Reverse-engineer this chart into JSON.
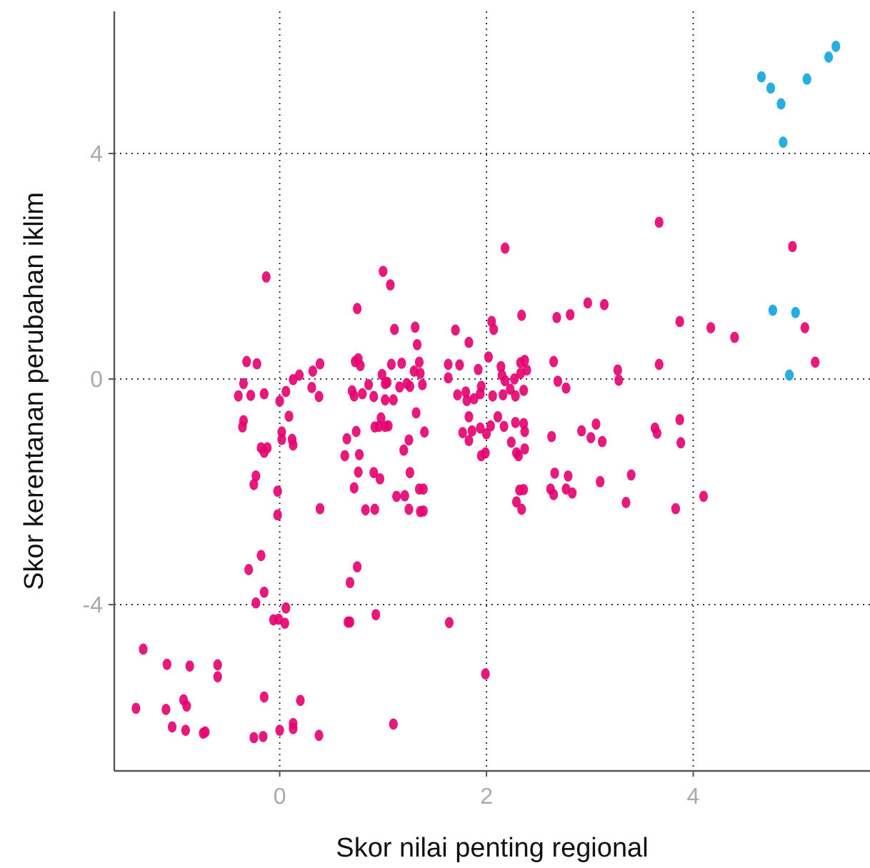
{
  "chart_data": {
    "type": "scatter",
    "xlabel": "Skor nilai penting regional",
    "ylabel": "Skor kerentanan perubahan iklim",
    "xlim": [
      -1.6,
      5.71
    ],
    "ylim": [
      -6.95,
      6.52
    ],
    "xticks": [
      0,
      2,
      4
    ],
    "yticks": [
      -4,
      0,
      4
    ],
    "grid": true,
    "marker": "circle",
    "series": [
      {
        "color": "#e5006f",
        "x": [
          3.67,
          4.96,
          3.87,
          4.17,
          4.4,
          5.08,
          5.18,
          3.67,
          3.87,
          3.88,
          3.63,
          3.65,
          4.1,
          3.83,
          3.4,
          3.35,
          3.1,
          3.27,
          3.28,
          2.98,
          3.14,
          2.81,
          2.68,
          2.65,
          2.69,
          2.77,
          2.92,
          3.01,
          3.06,
          3.12,
          2.63,
          2.66,
          2.79,
          2.62,
          2.65,
          2.77,
          2.83,
          2.18,
          2.05,
          2.07,
          2.34,
          1.7,
          1.83,
          2.02,
          1.74,
          1.63,
          1.63,
          1.92,
          2.14,
          2.15,
          2.18,
          2.33,
          2.37,
          2.39,
          2.33,
          2.27,
          2.23,
          2.36,
          2.28,
          2.16,
          2.06,
          1.95,
          1.94,
          1.88,
          1.8,
          1.72,
          1.81,
          2.11,
          2.04,
          1.94,
          1.86,
          1.77,
          1.83,
          1.83,
          2.0,
          1.95,
          1.99,
          2.17,
          2.28,
          2.36,
          2.37,
          2.24,
          2.37,
          2.29,
          2.31,
          2.32,
          2.36,
          2.29,
          2.34,
          1.64,
          1.99,
          1.0,
          1.07,
          0.75,
          1.11,
          1.31,
          1.33,
          0.76,
          0.78,
          0.73,
          1.18,
          1.08,
          1.35,
          1.3,
          1.36,
          0.99,
          1.02,
          1.04,
          1.23,
          1.26,
          1.38,
          1.16,
          0.86,
          0.7,
          0.72,
          0.8,
          0.91,
          1.02,
          1.1,
          1.32,
          1.4,
          0.98,
          0.92,
          0.96,
          1.02,
          1.05,
          0.74,
          0.65,
          1.25,
          1.2,
          0.77,
          0.63,
          0.76,
          0.91,
          0.97,
          1.26,
          0.72,
          1.13,
          1.21,
          1.35,
          1.39,
          0.83,
          0.92,
          1.25,
          1.36,
          1.39,
          0.75,
          0.68,
          0.66,
          0.68,
          0.93,
          1.1,
          -0.13,
          -0.32,
          -0.22,
          -0.35,
          -0.4,
          -0.28,
          -0.15,
          0.0,
          0.06,
          0.13,
          0.19,
          0.32,
          0.39,
          0.31,
          0.38,
          0.09,
          -0.35,
          -0.36,
          0.02,
          0.02,
          0.12,
          0.13,
          -0.18,
          -0.12,
          -0.15,
          -0.23,
          -0.25,
          -0.02,
          -0.02,
          0.39,
          -0.18,
          -0.3,
          -0.15,
          -0.23,
          -0.06,
          -0.01,
          0.06,
          0.05,
          -0.15,
          0.2,
          0.0,
          0.13,
          0.13,
          0.38,
          -0.16,
          -0.25,
          -1.32,
          -1.09,
          -0.87,
          -0.6,
          -0.6,
          -1.39,
          -1.1,
          -0.93,
          -0.9,
          -1.04,
          -0.91,
          -0.74,
          -0.72
        ],
        "values": [
          2.78,
          2.35,
          1.02,
          0.91,
          0.74,
          0.91,
          0.3,
          0.26,
          -0.72,
          -1.13,
          -0.87,
          -0.96,
          -2.08,
          -2.3,
          -1.7,
          -2.19,
          -1.82,
          0.16,
          -0.02,
          1.35,
          1.32,
          1.14,
          1.09,
          0.31,
          -0.04,
          -0.16,
          -0.92,
          -1.04,
          -0.8,
          -1.11,
          -1.02,
          -1.67,
          -1.72,
          -1.95,
          -2.05,
          -1.95,
          -2.02,
          2.32,
          1.02,
          0.88,
          1.13,
          0.87,
          0.65,
          0.39,
          0.25,
          0.26,
          0.02,
          0.17,
          0.22,
          0.07,
          -0.03,
          0.29,
          0.33,
          0.16,
          0.1,
          0.0,
          -0.18,
          -0.2,
          -0.3,
          -0.28,
          -0.3,
          -0.13,
          -0.26,
          -0.35,
          -0.23,
          -0.28,
          -0.38,
          -0.67,
          -0.83,
          -0.87,
          -0.92,
          -0.95,
          -1.09,
          -0.67,
          -0.97,
          -1.36,
          -1.31,
          -0.84,
          -0.77,
          -0.79,
          -0.93,
          -1.12,
          -1.24,
          -1.31,
          -1.36,
          -1.97,
          -1.96,
          -2.18,
          -2.31,
          -4.32,
          -5.23,
          1.91,
          1.67,
          1.25,
          0.88,
          0.92,
          0.61,
          0.36,
          0.24,
          0.31,
          0.28,
          0.26,
          0.3,
          0.14,
          0.1,
          0.08,
          -0.08,
          -0.06,
          -0.08,
          -0.13,
          -0.1,
          -0.14,
          -0.1,
          -0.21,
          -0.3,
          -0.26,
          -0.31,
          -0.37,
          -0.37,
          -0.6,
          -0.94,
          -0.69,
          -0.85,
          -0.84,
          -0.84,
          -0.83,
          -0.93,
          -1.06,
          -1.08,
          -1.26,
          -1.34,
          -1.36,
          -1.65,
          -1.66,
          -1.77,
          -1.66,
          -1.93,
          -2.08,
          -2.07,
          -1.95,
          -1.95,
          -2.32,
          -2.31,
          -2.31,
          -2.35,
          -2.34,
          -3.33,
          -3.61,
          -4.31,
          -4.31,
          -4.18,
          -6.12,
          1.81,
          0.31,
          0.27,
          -0.08,
          -0.3,
          -0.29,
          -0.26,
          -0.39,
          -0.22,
          -0.01,
          0.07,
          0.14,
          0.27,
          -0.15,
          -0.31,
          -0.66,
          -0.74,
          -0.85,
          -0.94,
          -1.07,
          -1.07,
          -1.17,
          -1.22,
          -1.22,
          -1.3,
          -1.72,
          -1.87,
          -1.99,
          -2.41,
          -2.3,
          -3.13,
          -3.38,
          -3.78,
          -3.97,
          -4.27,
          -4.26,
          -4.06,
          -4.33,
          -5.64,
          -5.7,
          -6.23,
          -6.11,
          -6.2,
          -6.32,
          -6.34,
          -6.36,
          -4.79,
          -5.06,
          -5.09,
          -5.07,
          -5.28,
          -5.84,
          -5.86,
          -5.69,
          -5.8,
          -6.17,
          -6.23,
          -6.28,
          -6.26
        ]
      },
      {
        "color": "#0ea5e0",
        "x": [
          4.66,
          4.75,
          4.85,
          4.87,
          5.1,
          5.31,
          5.38,
          4.77,
          4.99,
          4.93
        ],
        "values": [
          5.36,
          5.16,
          4.88,
          4.2,
          5.32,
          5.71,
          5.9,
          1.22,
          1.18,
          0.07
        ]
      }
    ]
  }
}
